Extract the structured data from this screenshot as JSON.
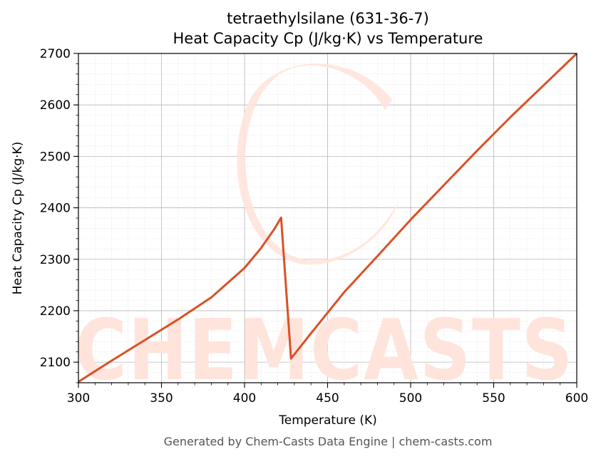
{
  "chart_data": {
    "type": "line",
    "title": "tetraethylsilane (631-36-7)",
    "subtitle": "Heat Capacity Cp (J/kg·K) vs Temperature",
    "xlabel": "Temperature (K)",
    "ylabel": "Heat Capacity Cp (J/kg·K)",
    "xlim": [
      300,
      600
    ],
    "ylim": [
      2060,
      2700
    ],
    "xticks": [
      300,
      350,
      400,
      450,
      500,
      550,
      600
    ],
    "yticks": [
      2100,
      2200,
      2300,
      2400,
      2500,
      2600,
      2700
    ],
    "grid": true,
    "legend": "none",
    "line_color": "#d95127",
    "series": [
      {
        "x": [
          300,
          320,
          340,
          360,
          380,
          400,
          410,
          418,
          422,
          428,
          440,
          460,
          480,
          500,
          520,
          540,
          560,
          580,
          600
        ],
        "values": [
          2062,
          2103,
          2143,
          2183,
          2226,
          2283,
          2322,
          2359,
          2381,
          2107,
          2156,
          2236,
          2306,
          2377,
          2444,
          2511,
          2576,
          2638,
          2700
        ]
      }
    ]
  },
  "watermark": {
    "text": "CHEMCASTS",
    "color": "#ffe4dc"
  },
  "footer": {
    "text": "Generated by Chem-Casts Data Engine | chem-casts.com"
  }
}
